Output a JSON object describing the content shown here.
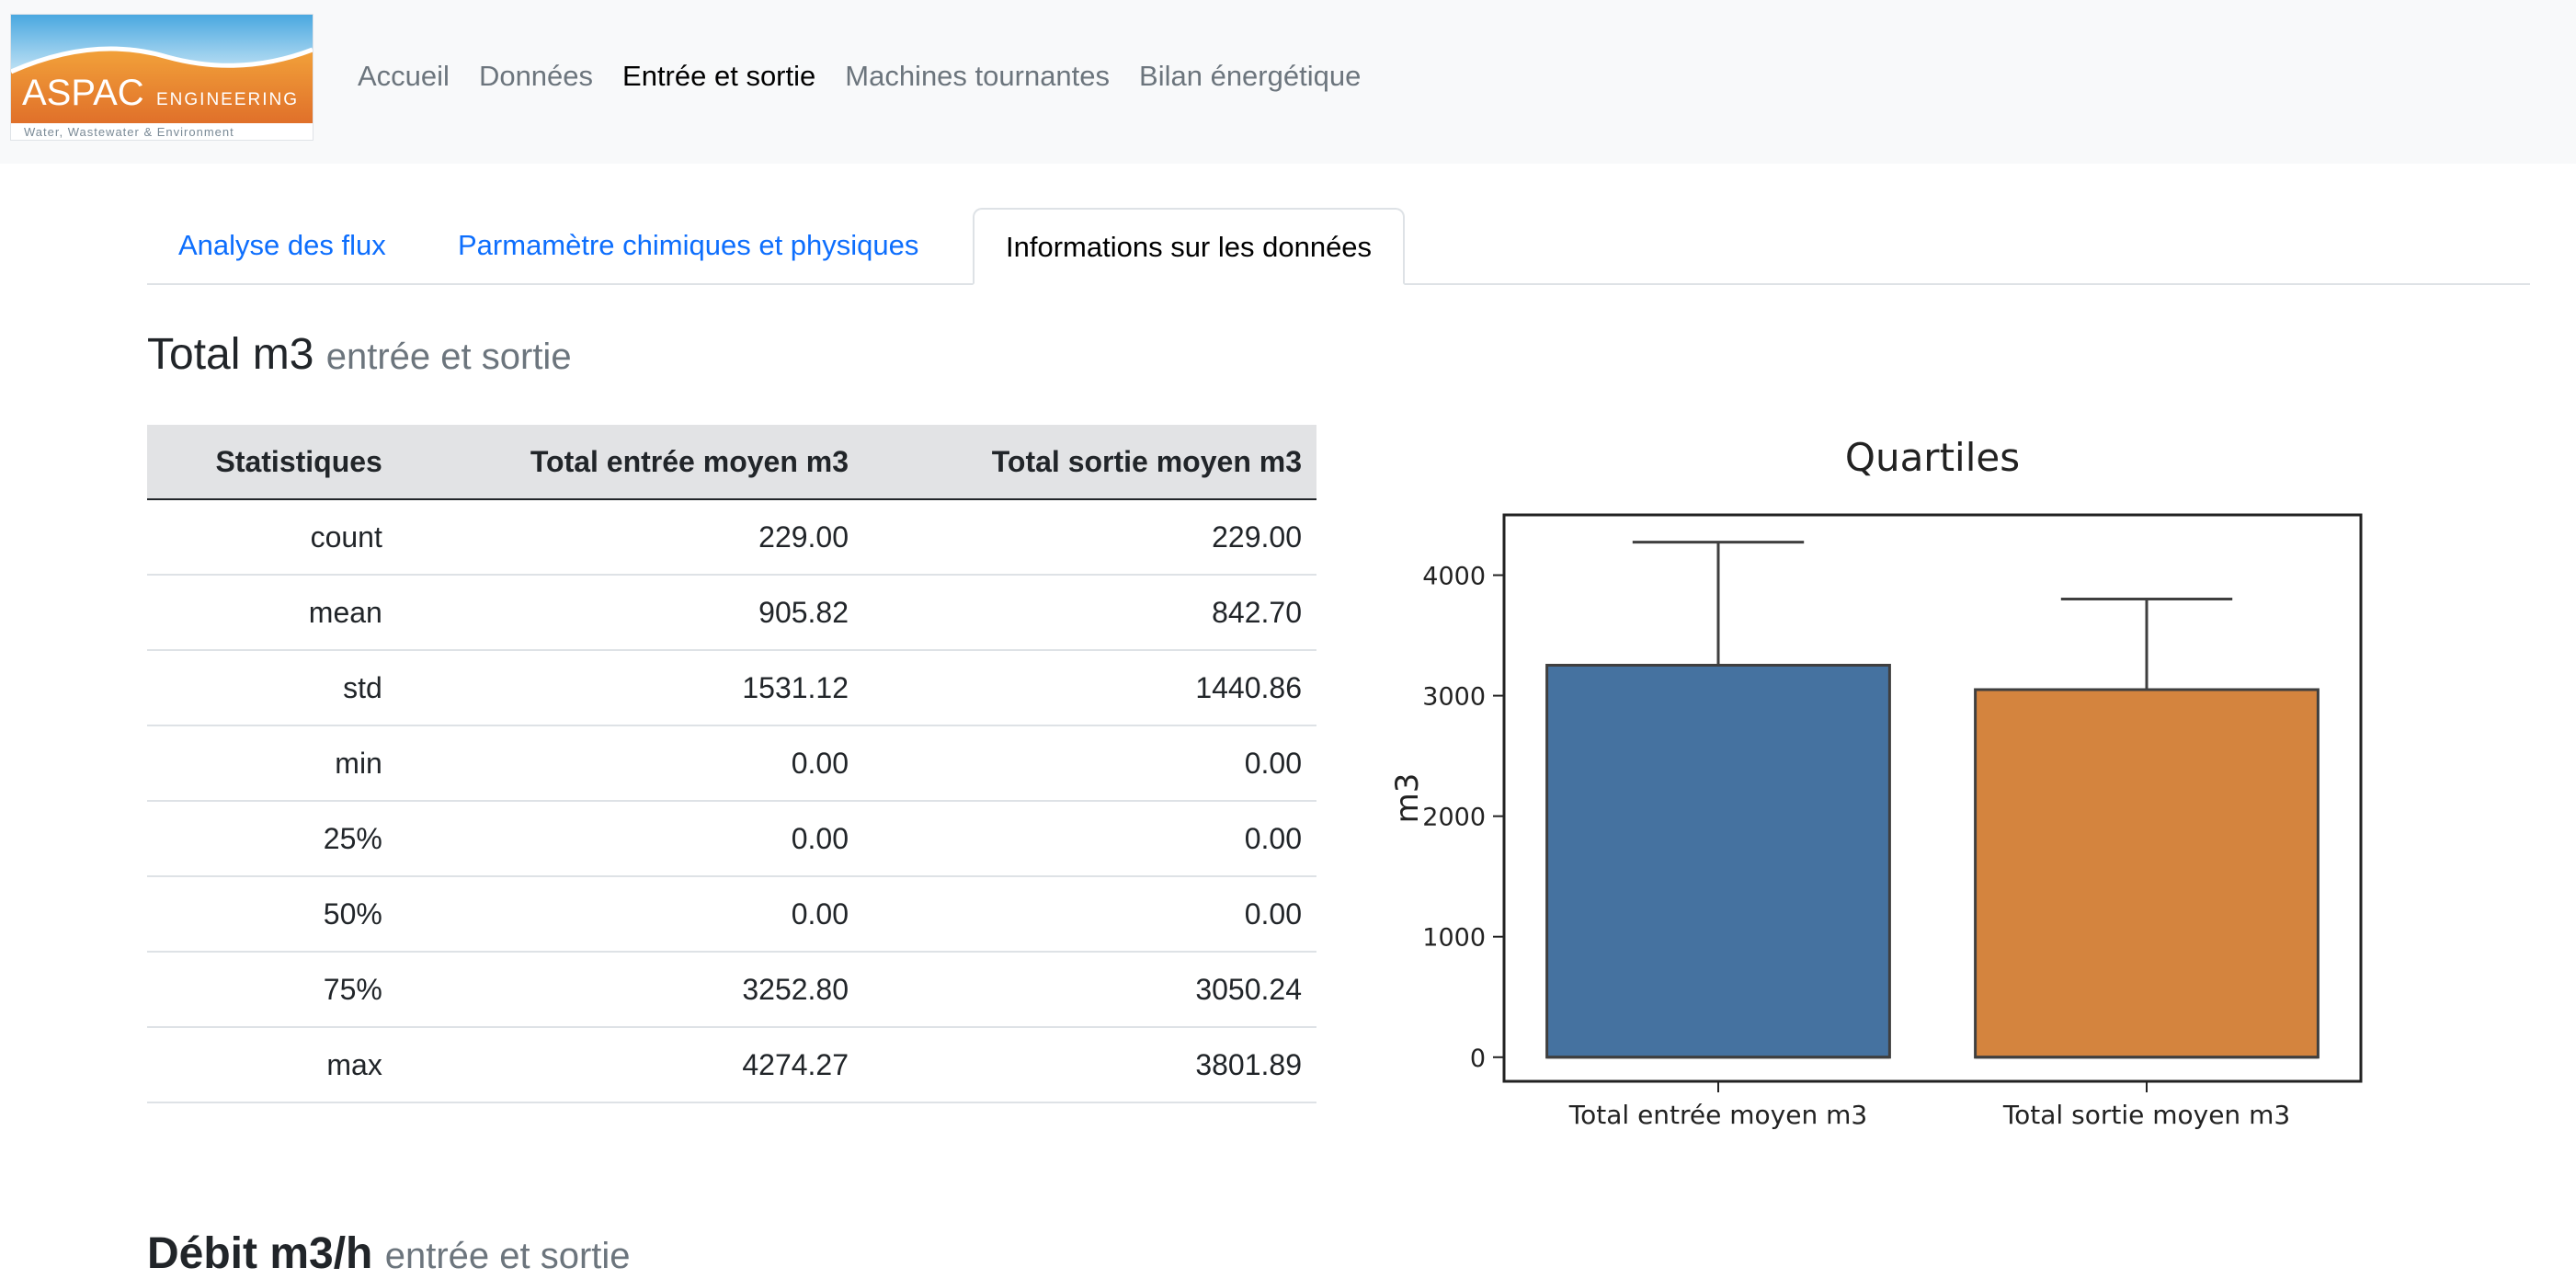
{
  "brand": {
    "name": "ASPAC",
    "suffix": "ENGINEERING",
    "tagline": "Water, Wastewater & Environment"
  },
  "nav": {
    "items": [
      {
        "label": "Accueil",
        "active": false
      },
      {
        "label": "Données",
        "active": false
      },
      {
        "label": "Entrée et sortie",
        "active": true
      },
      {
        "label": "Machines tournantes",
        "active": false
      },
      {
        "label": "Bilan énergétique",
        "active": false
      }
    ]
  },
  "tabs": [
    {
      "label": "Analyse des flux",
      "active": false
    },
    {
      "label": "Parmamètre chimiques et physiques",
      "active": false
    },
    {
      "label": "Informations sur les données",
      "active": true
    }
  ],
  "section": {
    "title": "Total m3",
    "subtitle": "entrée et sortie"
  },
  "table": {
    "headers": [
      "Statistiques",
      "Total entrée moyen m3",
      "Total sortie moyen m3"
    ],
    "rows": [
      [
        "count",
        "229.00",
        "229.00"
      ],
      [
        "mean",
        "905.82",
        "842.70"
      ],
      [
        "std",
        "1531.12",
        "1440.86"
      ],
      [
        "min",
        "0.00",
        "0.00"
      ],
      [
        "25%",
        "0.00",
        "0.00"
      ],
      [
        "50%",
        "0.00",
        "0.00"
      ],
      [
        "75%",
        "3252.80",
        "3050.24"
      ],
      [
        "max",
        "4274.27",
        "3801.89"
      ]
    ]
  },
  "chart_data": {
    "type": "box",
    "title": "Quartiles",
    "xlabel": "",
    "ylabel": "m3",
    "ylim": [
      -200,
      4500
    ],
    "yticks": [
      0,
      1000,
      2000,
      3000,
      4000
    ],
    "categories": [
      "Total entrée moyen m3",
      "Total sortie moyen m3"
    ],
    "series": [
      {
        "min": 0,
        "q1": 0,
        "median": 0,
        "q3": 3252.8,
        "max": 4274.27,
        "color": "#4572a0"
      },
      {
        "min": 0,
        "q1": 0,
        "median": 0,
        "q3": 3050.24,
        "max": 3801.89,
        "color": "#d4843e"
      }
    ],
    "grid": false,
    "legend": "none"
  },
  "next_section": {
    "title": "Débit m3/h",
    "subtitle": "entrée et sortie"
  }
}
